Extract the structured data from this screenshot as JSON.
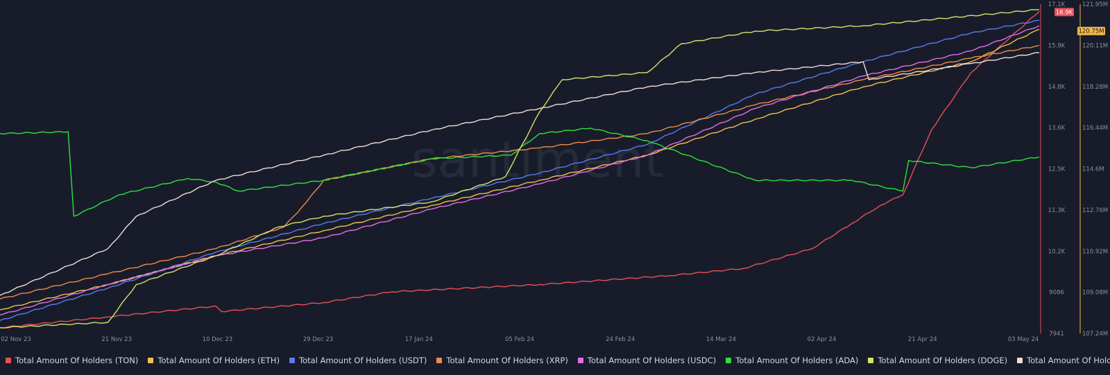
{
  "chart_data": {
    "type": "line",
    "watermark": "santiment",
    "x_ticks": [
      "02 Nov 23",
      "21 Nov 23",
      "10 Dec 23",
      "29 Dec 23",
      "17 Jan 24",
      "05 Feb 24",
      "24 Feb 24",
      "14 Mar 24",
      "02 Apr 24",
      "21 Apr 24",
      "03 May 24"
    ],
    "xlim": [
      "2023-11-02",
      "2024-05-03"
    ],
    "y_left": {
      "ticks": [
        "17.1K",
        "15.9K",
        "14.8K",
        "13.6K",
        "12.5K",
        "11.3K",
        "10.2K",
        "9086",
        "7941"
      ],
      "range": [
        7941,
        17100
      ],
      "current_label": "16.9K",
      "current_value": 16900,
      "current_color": "#e8505b"
    },
    "y_right": {
      "ticks": [
        "121.95M",
        "120.11M",
        "118.28M",
        "116.44M",
        "114.6M",
        "112.76M",
        "110.92M",
        "109.08M",
        "107.24M"
      ],
      "range": [
        107.24,
        121.95
      ],
      "unit": "M",
      "current_label": "120.75M",
      "current_value": 120.75,
      "current_color": "#f2b84b"
    },
    "series": [
      {
        "name": "Total Amount Of Holders (TON)",
        "color": "#e8505b",
        "points": [
          [
            "2023-11-02",
            8100
          ],
          [
            "2023-11-21",
            8400
          ],
          [
            "2023-12-10",
            8700
          ],
          [
            "2023-12-11",
            8550
          ],
          [
            "2023-12-29",
            8800
          ],
          [
            "2024-01-10",
            9100
          ],
          [
            "2024-02-05",
            9300
          ],
          [
            "2024-02-28",
            9550
          ],
          [
            "2024-03-12",
            9750
          ],
          [
            "2024-03-24",
            10300
          ],
          [
            "2024-03-31",
            11000
          ],
          [
            "2024-04-05",
            11500
          ],
          [
            "2024-04-09",
            11800
          ],
          [
            "2024-04-14",
            13600
          ],
          [
            "2024-04-21",
            15200
          ],
          [
            "2024-05-03",
            16900
          ]
        ]
      },
      {
        "name": "Total Amount Of Holders (ETH)",
        "color": "#f2c14e",
        "points": [
          [
            "2023-11-02",
            8600
          ],
          [
            "2023-11-21",
            9300
          ],
          [
            "2023-12-10",
            10100
          ],
          [
            "2023-12-29",
            10800
          ],
          [
            "2024-01-17",
            11500
          ],
          [
            "2024-02-05",
            12200
          ],
          [
            "2024-02-24",
            12900
          ],
          [
            "2024-03-14",
            13900
          ],
          [
            "2024-04-02",
            14800
          ],
          [
            "2024-04-21",
            15500
          ],
          [
            "2024-05-03",
            16400
          ]
        ]
      },
      {
        "name": "Total Amount Of Holders (USDT)",
        "color": "#5a7cf0",
        "points": [
          [
            "2023-11-02",
            8300
          ],
          [
            "2023-11-21",
            9200
          ],
          [
            "2023-12-10",
            10200
          ],
          [
            "2023-12-29",
            11000
          ],
          [
            "2024-01-17",
            11700
          ],
          [
            "2024-02-05",
            12400
          ],
          [
            "2024-02-24",
            13200
          ],
          [
            "2024-03-14",
            14600
          ],
          [
            "2024-04-02",
            15500
          ],
          [
            "2024-04-21",
            16300
          ],
          [
            "2024-05-03",
            16650
          ]
        ]
      },
      {
        "name": "Total Amount Of Holders (XRP)",
        "color": "#f08a4b",
        "points": [
          [
            "2023-11-02",
            8900
          ],
          [
            "2023-11-21",
            9600
          ],
          [
            "2023-12-10",
            10300
          ],
          [
            "2023-12-22",
            10900
          ],
          [
            "2023-12-26",
            11600
          ],
          [
            "2023-12-29",
            12200
          ],
          [
            "2024-01-17",
            12800
          ],
          [
            "2024-02-05",
            13100
          ],
          [
            "2024-02-24",
            13500
          ],
          [
            "2024-03-14",
            14300
          ],
          [
            "2024-04-02",
            15000
          ],
          [
            "2024-04-21",
            15600
          ],
          [
            "2024-05-03",
            15950
          ]
        ]
      },
      {
        "name": "Total Amount Of Holders (USDC)",
        "color": "#e46ee6",
        "points": [
          [
            "2023-11-02",
            8450
          ],
          [
            "2023-11-21",
            9300
          ],
          [
            "2023-12-10",
            10100
          ],
          [
            "2023-12-29",
            10600
          ],
          [
            "2024-01-17",
            11400
          ],
          [
            "2024-02-05",
            12100
          ],
          [
            "2024-02-24",
            12900
          ],
          [
            "2024-03-14",
            14200
          ],
          [
            "2024-04-02",
            15100
          ],
          [
            "2024-04-21",
            15800
          ],
          [
            "2024-05-03",
            16500
          ]
        ]
      },
      {
        "name": "Total Amount Of Holders (ADA)",
        "color": "#2fe03c",
        "points": [
          [
            "2023-11-02",
            13500
          ],
          [
            "2023-11-14",
            13550
          ],
          [
            "2023-11-15",
            11200
          ],
          [
            "2023-11-23",
            11800
          ],
          [
            "2023-12-05",
            12250
          ],
          [
            "2023-12-10",
            12150
          ],
          [
            "2023-12-14",
            11900
          ],
          [
            "2023-12-29",
            12200
          ],
          [
            "2024-01-17",
            12800
          ],
          [
            "2024-01-31",
            12900
          ],
          [
            "2024-02-05",
            13500
          ],
          [
            "2024-02-14",
            13650
          ],
          [
            "2024-02-24",
            13300
          ],
          [
            "2024-03-14",
            12200
          ],
          [
            "2024-03-31",
            12200
          ],
          [
            "2024-04-09",
            11900
          ],
          [
            "2024-04-10",
            12750
          ],
          [
            "2024-04-21",
            12550
          ],
          [
            "2024-05-03",
            12850
          ]
        ]
      },
      {
        "name": "Total Amount Of Holders (DOGE)",
        "color": "#d7e36a",
        "points": [
          [
            "2023-11-02",
            8100
          ],
          [
            "2023-11-21",
            8250
          ],
          [
            "2023-11-26",
            9300
          ],
          [
            "2023-12-10",
            10100
          ],
          [
            "2023-12-21",
            10900
          ],
          [
            "2023-12-29",
            11200
          ],
          [
            "2024-01-17",
            11600
          ],
          [
            "2024-01-30",
            12300
          ],
          [
            "2024-02-05",
            14100
          ],
          [
            "2024-02-09",
            15000
          ],
          [
            "2024-02-24",
            15200
          ],
          [
            "2024-03-01",
            16000
          ],
          [
            "2024-03-14",
            16350
          ],
          [
            "2024-04-02",
            16500
          ],
          [
            "2024-05-03",
            16950
          ]
        ]
      },
      {
        "name": "Total Amount Of Holders (LINK)",
        "color": "#f1ddd6",
        "points": [
          [
            "2023-11-02",
            9000
          ],
          [
            "2023-11-21",
            10300
          ],
          [
            "2023-11-26",
            11200
          ],
          [
            "2023-12-10",
            12200
          ],
          [
            "2023-12-29",
            12900
          ],
          [
            "2024-01-17",
            13600
          ],
          [
            "2024-02-05",
            14200
          ],
          [
            "2024-02-24",
            14800
          ],
          [
            "2024-03-14",
            15200
          ],
          [
            "2024-04-02",
            15500
          ],
          [
            "2024-04-03",
            15000
          ],
          [
            "2024-04-21",
            15450
          ],
          [
            "2024-05-03",
            15750
          ]
        ]
      }
    ],
    "legend_position": "bottom",
    "grid": false
  }
}
